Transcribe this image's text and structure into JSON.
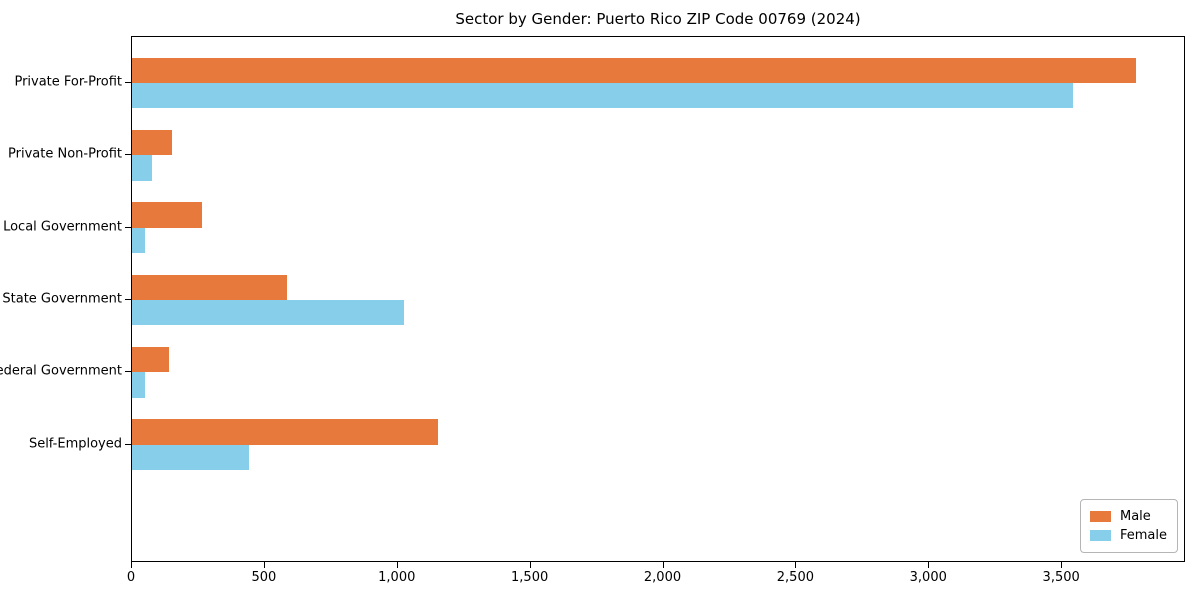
{
  "chart_data": {
    "type": "bar",
    "orientation": "horizontal",
    "title": "Sector by Gender: Puerto Rico ZIP Code 00769 (2024)",
    "categories": [
      "Private For-Profit",
      "Private Non-Profit",
      "Local Government",
      "State Government",
      "Federal Government",
      "Self-Employed"
    ],
    "series": [
      {
        "name": "Male",
        "color": "#e8793d",
        "values": [
          3778,
          150,
          265,
          585,
          140,
          1150
        ]
      },
      {
        "name": "Female",
        "color": "#87ceeb",
        "values": [
          3540,
          75,
          50,
          1025,
          50,
          440
        ]
      }
    ],
    "xlabel": "",
    "ylabel": "",
    "xlim": [
      0,
      3966
    ],
    "xticks": [
      0,
      500,
      1000,
      1500,
      2000,
      2500,
      3000,
      3500
    ],
    "xtick_labels": [
      "0",
      "500",
      "1,000",
      "1,500",
      "2,000",
      "2,500",
      "3,000",
      "3,500"
    ],
    "grid": false,
    "legend": {
      "position": "lower right",
      "entries": [
        "Male",
        "Female"
      ]
    },
    "colors": {
      "spine": "#000000",
      "text": "#000000",
      "background": "#ffffff"
    }
  }
}
